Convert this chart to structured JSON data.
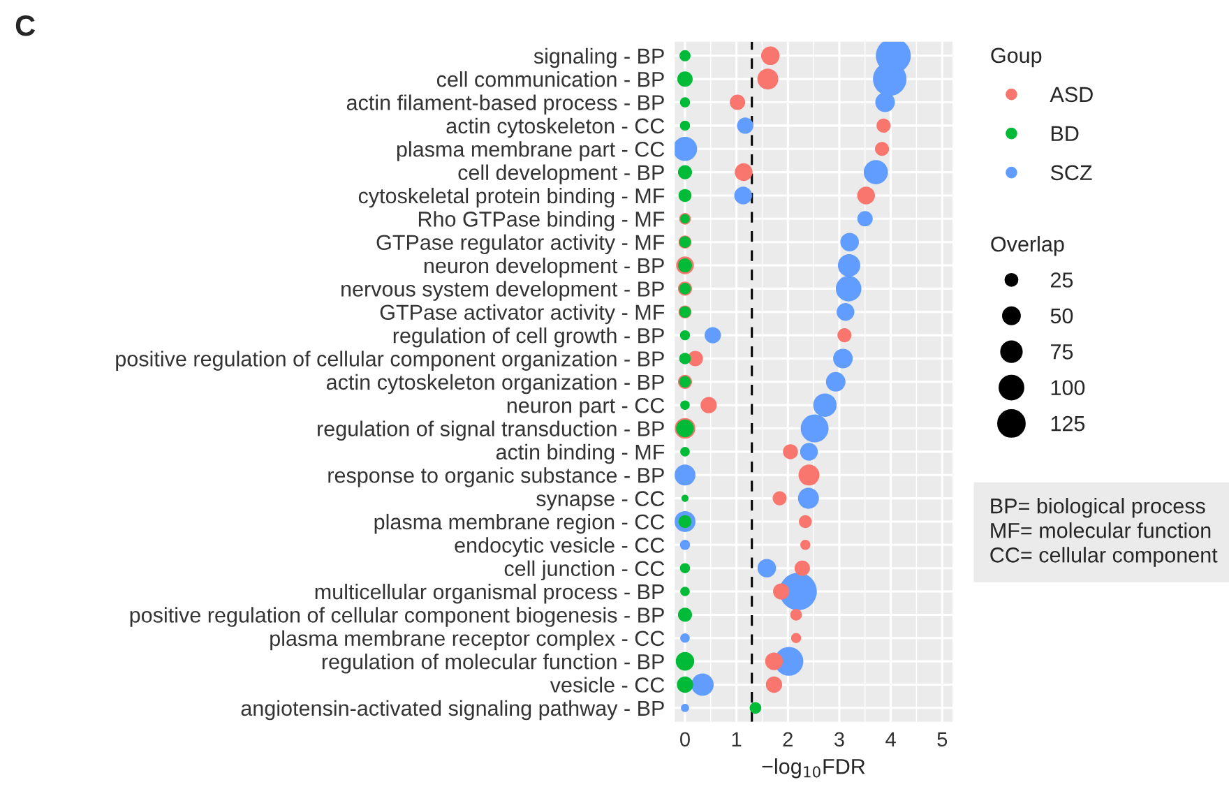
{
  "chart_data": {
    "type": "bubble",
    "title": "C",
    "xlabel": "−log$_{10}$FDR",
    "legend_title": "Goup",
    "categories": [
      "signaling - BP",
      "cell communication - BP",
      "actin filament-based process - BP",
      "actin cytoskeleton - CC",
      "plasma membrane part - CC",
      "cell development - BP",
      "cytoskeletal protein binding - MF",
      "Rho GTPase binding - MF",
      "GTPase regulator activity - MF",
      "neuron development - BP",
      "nervous system development - BP",
      "GTPase activator activity - MF",
      "regulation of cell growth - BP",
      "positive regulation of cellular component organization - BP",
      "actin cytoskeleton organization - BP",
      "neuron part - CC",
      "regulation of signal transduction - BP",
      "actin binding - MF",
      "response to organic substance - BP",
      "synapse - CC",
      "plasma membrane region - CC",
      "endocytic vesicle - CC",
      "cell junction - CC",
      "multicellular organismal process - BP",
      "positive regulation of cellular component biogenesis - BP",
      "plasma membrane receptor complex - CC",
      "regulation of molecular function - BP",
      "vesicle - CC",
      "angiotensin-activated signaling pathway - BP"
    ],
    "series": [
      {
        "name": "ASD",
        "color": "#f8766d",
        "values": [
          1.66,
          1.61,
          1.02,
          3.86,
          3.83,
          1.14,
          3.52,
          0,
          0,
          0,
          0,
          0,
          3.1,
          0.2,
          0,
          0.46,
          0,
          2.05,
          2.41,
          1.84,
          2.34,
          2.34,
          2.28,
          1.87,
          2.16,
          2.16,
          1.73,
          1.73,
          null
        ],
        "sizes": [
          61,
          78,
          42,
          35,
          35,
          56,
          56,
          24,
          30,
          56,
          35,
          30,
          35,
          42,
          35,
          47,
          75,
          40,
          78,
          35,
          30,
          18,
          42,
          47,
          24,
          18,
          56,
          47,
          null
        ]
      },
      {
        "name": "BD",
        "color": "#00ba38",
        "values": [
          0,
          0,
          0,
          0,
          null,
          0,
          0,
          0,
          0,
          0,
          0,
          0,
          0,
          0,
          0,
          0,
          0,
          0,
          null,
          0,
          0,
          null,
          0,
          0,
          0,
          null,
          0,
          0,
          1.37
        ],
        "sizes": [
          22,
          42,
          18,
          18,
          null,
          35,
          30,
          16,
          24,
          35,
          24,
          24,
          18,
          24,
          24,
          16,
          56,
          16,
          null,
          9,
          30,
          null,
          18,
          16,
          35,
          null,
          61,
          47,
          24
        ]
      },
      {
        "name": "SCZ",
        "color": "#619cff",
        "values": [
          4.05,
          3.98,
          3.89,
          1.17,
          0,
          3.71,
          1.13,
          3.5,
          3.2,
          3.19,
          3.18,
          3.12,
          0.54,
          3.07,
          2.93,
          2.72,
          2.52,
          2.41,
          0,
          2.4,
          0,
          0,
          1.59,
          2.2,
          null,
          0,
          2.02,
          0.34,
          0
        ],
        "sizes": [
          216,
          199,
          68,
          47,
          104,
          104,
          56,
          42,
          61,
          89,
          116,
          56,
          47,
          68,
          68,
          97,
          138,
          56,
          78,
          78,
          78,
          18,
          61,
          247,
          null,
          16,
          148,
          89,
          12
        ]
      }
    ],
    "orientation": "horizontal",
    "xlim": [
      -0.2,
      5.2
    ],
    "xticks": [
      0,
      1,
      2,
      3,
      4,
      5
    ],
    "size_legend": [
      25,
      50,
      75,
      100,
      125
    ],
    "ref_lines": [
      {
        "axis": "x",
        "value": 1.3,
        "line_style": "dashed",
        "color": "#000000"
      }
    ],
    "grid": true,
    "legend": "right",
    "annotations": [
      "Overlap",
      "BP= biological process\nMF= molecular function\nCC= cellular component"
    ]
  }
}
